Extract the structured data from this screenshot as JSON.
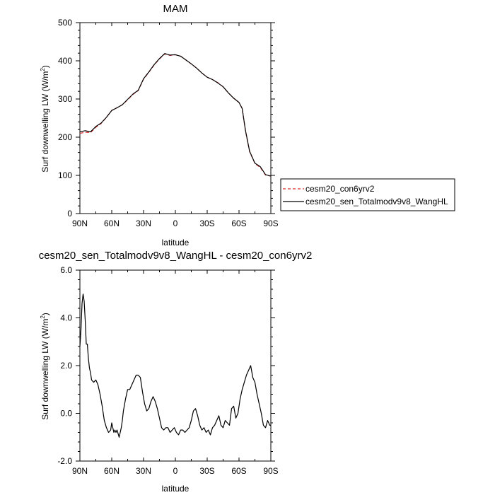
{
  "chart_data": [
    {
      "type": "line",
      "title": "MAM",
      "xlabel": "latitude",
      "ylabel": "Surf downwelling LW (W/m2)",
      "ylabel_main": "Surf downwelling LW (W/m",
      "ylabel_sup": "2",
      "ylabel_close": ")",
      "xlim": [
        90,
        -90
      ],
      "ylim": [
        0,
        500
      ],
      "xticks": [
        90,
        60,
        30,
        0,
        -30,
        -60,
        -90
      ],
      "xtick_labels": [
        "90N",
        "60N",
        "30N",
        "0",
        "30S",
        "60S",
        "90S"
      ],
      "yticks": [
        0,
        100,
        200,
        300,
        400,
        500
      ],
      "ytick_labels": [
        "0",
        "100",
        "200",
        "300",
        "400",
        "500"
      ],
      "grid": false,
      "legend_position": "right",
      "series": [
        {
          "name": "cesm20_con6yrv2",
          "color": "#d62728",
          "style": "dashed",
          "x": [
            90,
            85,
            80,
            75,
            70,
            65,
            60,
            55,
            50,
            45,
            40,
            35,
            30,
            25,
            20,
            15,
            10,
            5,
            0,
            -5,
            -10,
            -15,
            -20,
            -25,
            -30,
            -35,
            -40,
            -45,
            -50,
            -55,
            -60,
            -63,
            -66,
            -70,
            -75,
            -80,
            -85,
            -90
          ],
          "values": [
            210,
            213,
            212,
            226,
            236,
            252,
            270,
            277,
            285,
            298,
            312,
            322,
            352,
            370,
            389,
            405,
            418,
            414,
            416,
            412,
            402,
            392,
            381,
            368,
            357,
            351,
            343,
            332,
            316,
            302,
            291,
            275,
            218,
            162,
            131,
            121,
            101,
            98
          ]
        },
        {
          "name": "cesm20_sen_Totalmodv9v8_WangHL",
          "color": "#000000",
          "style": "solid",
          "x": [
            90,
            85,
            80,
            75,
            70,
            65,
            60,
            55,
            50,
            45,
            40,
            35,
            30,
            25,
            20,
            15,
            10,
            5,
            0,
            -5,
            -10,
            -15,
            -20,
            -25,
            -30,
            -35,
            -40,
            -45,
            -50,
            -55,
            -60,
            -63,
            -66,
            -70,
            -75,
            -80,
            -85,
            -90
          ],
          "values": [
            214,
            217,
            214,
            228,
            237,
            252,
            270,
            277,
            285,
            299,
            313,
            323,
            353,
            371,
            390,
            406,
            419,
            415,
            416,
            412,
            402,
            392,
            381,
            368,
            357,
            351,
            342,
            332,
            316,
            302,
            291,
            275,
            219,
            163,
            132,
            123,
            102,
            98
          ]
        }
      ]
    },
    {
      "type": "line",
      "title": "cesm20_sen_Totalmodv9v8_WangHL - cesm20_con6yrv2",
      "xlabel": "latitude",
      "ylabel": "Surf downwelling LW (W/m2)",
      "ylabel_main": "Surf downwelling LW (W/m",
      "ylabel_sup": "2",
      "ylabel_close": ")",
      "xlim": [
        90,
        -90
      ],
      "ylim": [
        -2.0,
        6.0
      ],
      "xticks": [
        90,
        60,
        30,
        0,
        -30,
        -60,
        -90
      ],
      "xtick_labels": [
        "90N",
        "60N",
        "30N",
        "0",
        "30S",
        "60S",
        "90S"
      ],
      "yticks": [
        -2.0,
        0.0,
        2.0,
        4.0,
        6.0
      ],
      "ytick_labels": [
        "-2.0",
        "0.0",
        "2.0",
        "4.0",
        "6.0"
      ],
      "grid": false,
      "series": [
        {
          "color": "#000000",
          "style": "solid",
          "x": [
            90,
            89,
            88,
            87,
            86,
            85,
            84,
            83,
            82,
            81,
            80,
            79,
            77,
            75,
            73,
            71,
            69,
            67,
            65,
            63,
            61,
            60,
            59,
            58,
            57,
            56,
            55,
            53,
            51,
            50,
            49,
            47,
            45,
            43,
            41,
            39,
            37,
            35,
            33,
            31,
            29,
            27,
            25,
            23,
            21,
            19,
            17,
            15,
            13,
            11,
            9,
            7,
            5,
            3,
            1,
            0,
            -1,
            -3,
            -5,
            -7,
            -9,
            -11,
            -13,
            -15,
            -17,
            -19,
            -21,
            -23,
            -25,
            -27,
            -29,
            -31,
            -33,
            -35,
            -37,
            -39,
            -41,
            -43,
            -45,
            -47,
            -49,
            -51,
            -53,
            -55,
            -57,
            -59,
            -61,
            -63,
            -65,
            -67,
            -69,
            -71,
            -73,
            -75,
            -77,
            -79,
            -81,
            -83,
            -85,
            -87,
            -89,
            -90
          ],
          "values": [
            2.8,
            3.5,
            4.6,
            5.0,
            4.7,
            3.9,
            2.9,
            2.9,
            2.3,
            1.9,
            1.7,
            1.4,
            1.3,
            1.4,
            1.2,
            0.8,
            0.3,
            -0.3,
            -0.6,
            -0.8,
            -0.7,
            -0.4,
            -0.6,
            -0.8,
            -0.7,
            -0.8,
            -0.7,
            -1.0,
            -0.6,
            -0.3,
            0.1,
            0.6,
            1.0,
            1.0,
            1.2,
            1.4,
            1.6,
            1.6,
            1.5,
            0.9,
            0.4,
            0.1,
            0.2,
            0.5,
            0.7,
            0.5,
            0.2,
            -0.2,
            -0.6,
            -0.7,
            -0.6,
            -0.6,
            -0.8,
            -0.7,
            -0.6,
            -0.7,
            -0.8,
            -0.9,
            -0.7,
            -0.7,
            -0.8,
            -0.7,
            -0.6,
            -0.3,
            0.1,
            0.2,
            -0.1,
            -0.5,
            -0.7,
            -0.6,
            -0.8,
            -0.7,
            -0.9,
            -0.6,
            -0.5,
            -0.3,
            -0.1,
            -0.5,
            -0.6,
            -0.3,
            -0.4,
            -0.5,
            0.2,
            0.3,
            -0.2,
            0.0,
            0.6,
            1.0,
            1.3,
            1.6,
            1.8,
            2.0,
            1.5,
            1.3,
            0.8,
            0.4,
            0.0,
            -0.5,
            -0.6,
            -0.3,
            -0.5,
            -0.5
          ]
        }
      ]
    }
  ]
}
